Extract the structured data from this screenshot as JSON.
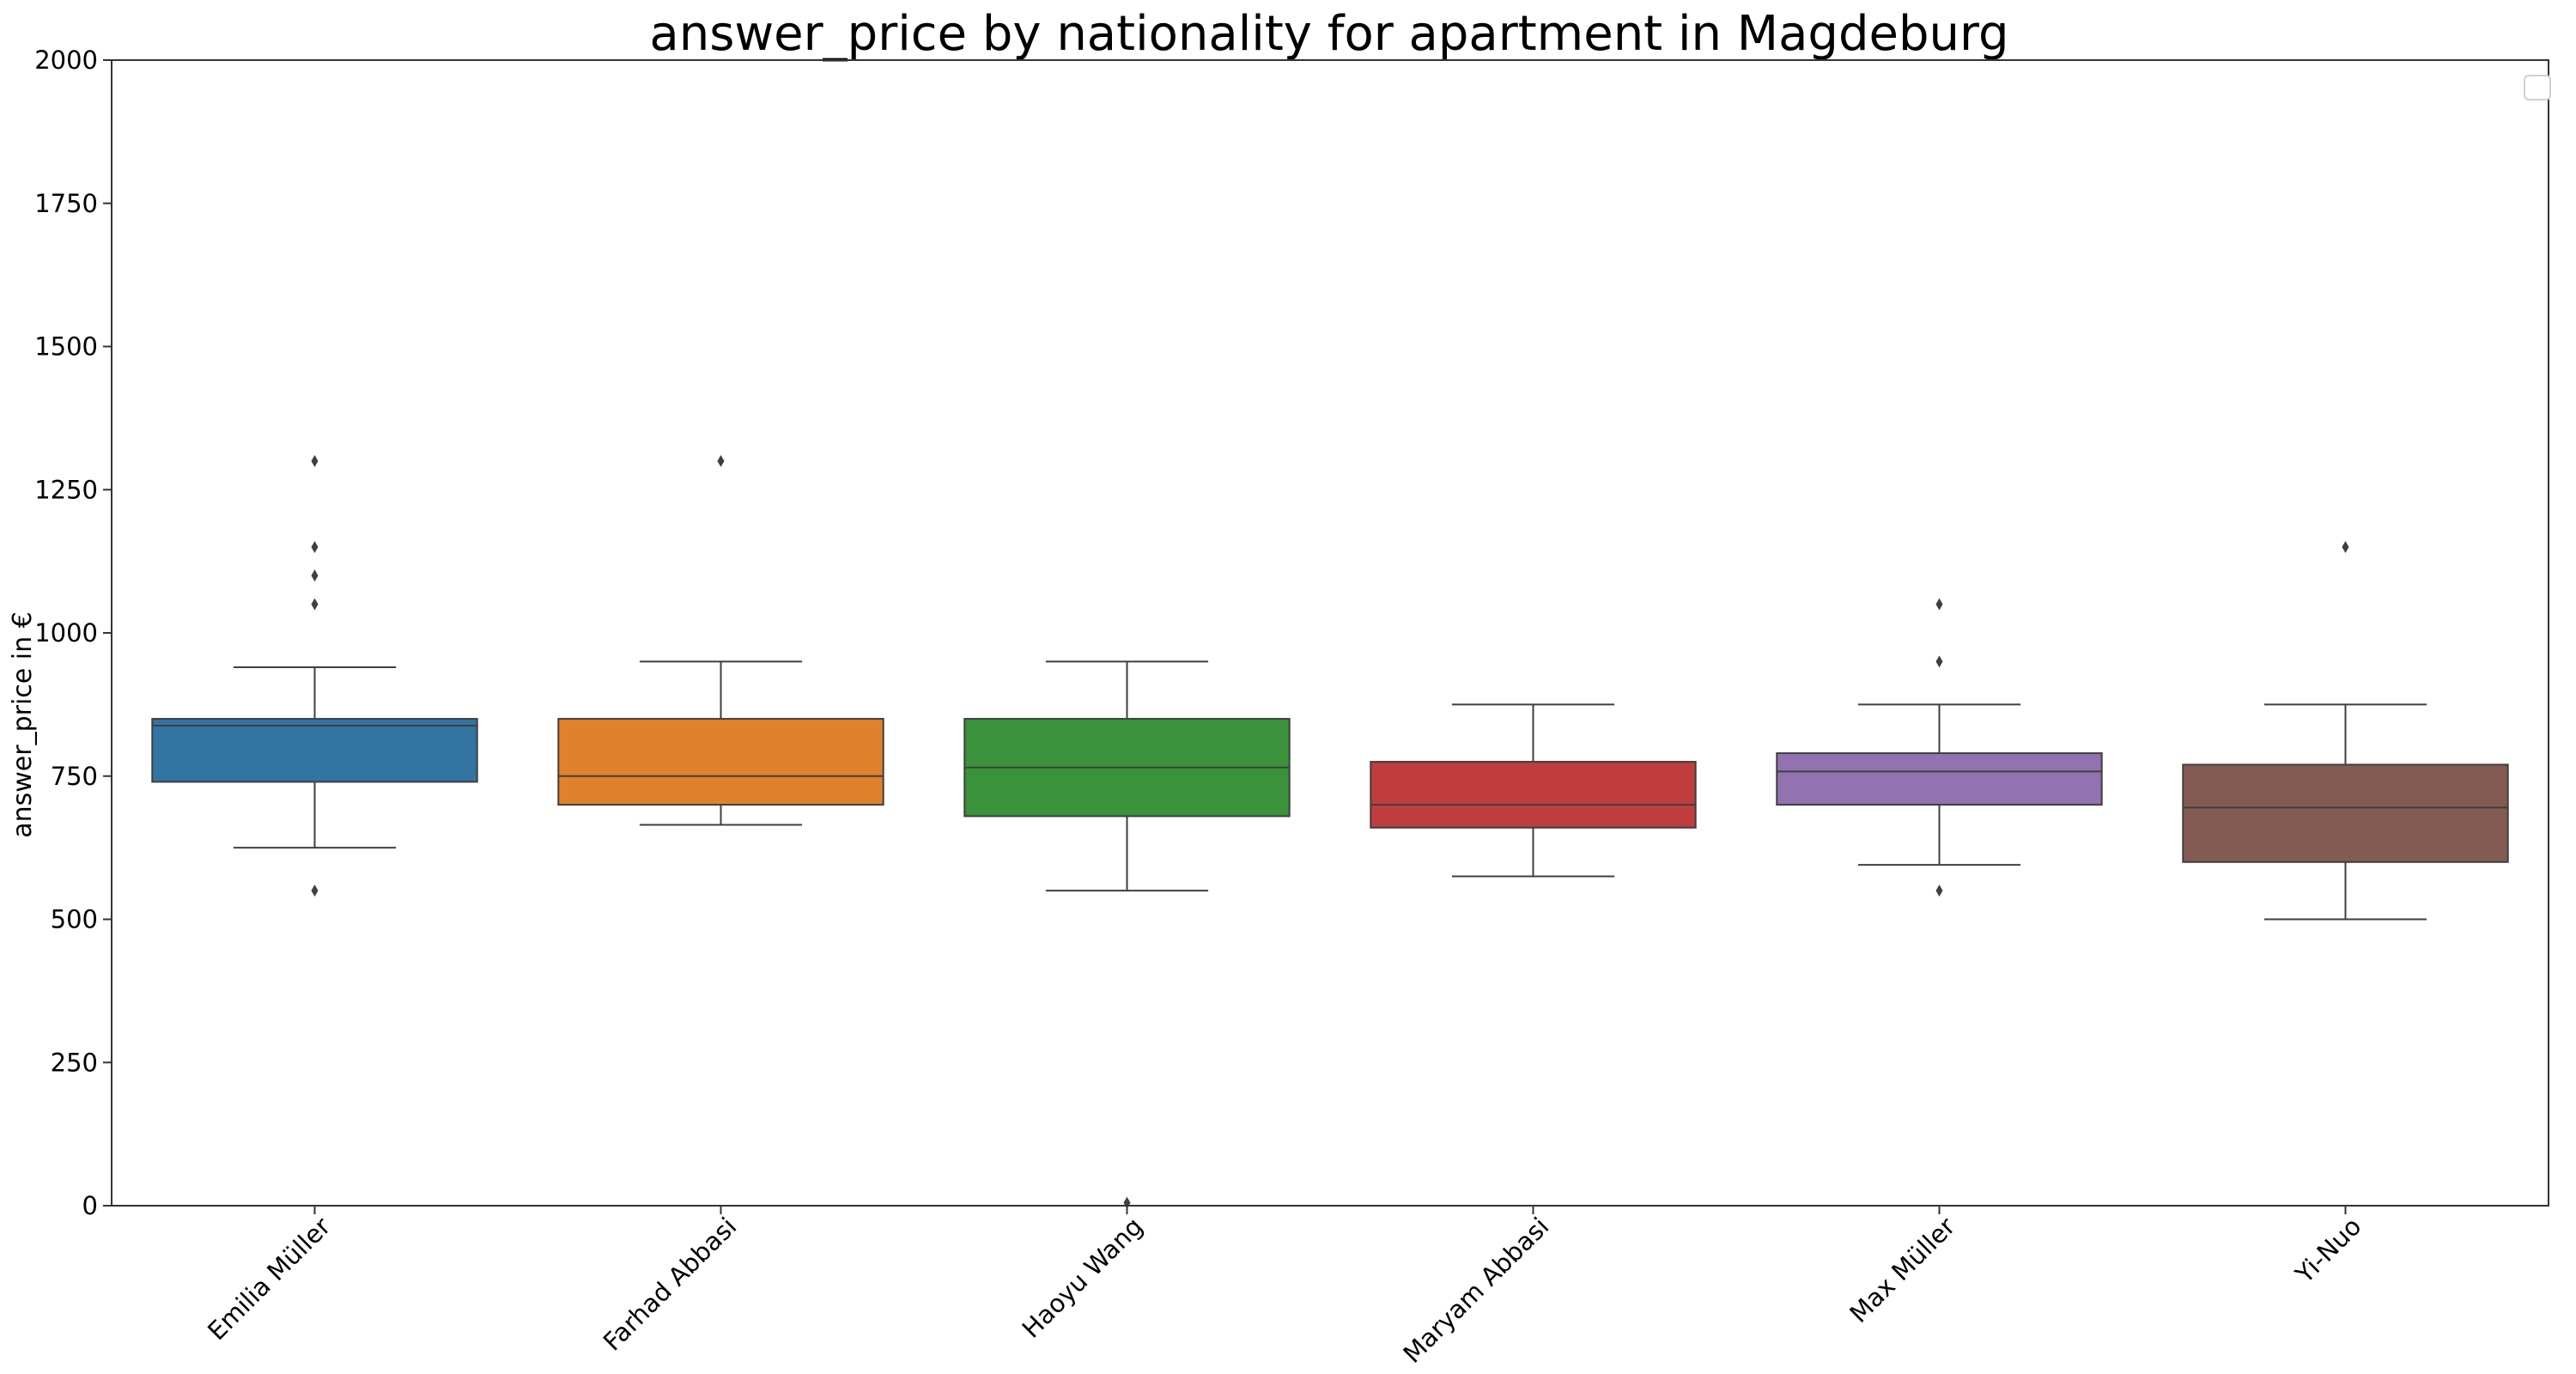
{
  "chart_data": {
    "type": "box",
    "title": "answer_price by nationality for apartment in Magdeburg",
    "xlabel": "",
    "ylabel": "answer_price in €",
    "ylim": [
      0,
      2000
    ],
    "yticks": [
      0,
      250,
      500,
      750,
      1000,
      1250,
      1500,
      1750,
      2000
    ],
    "grid": false,
    "legend": {
      "placement": "top-right",
      "entries": []
    },
    "categories": [
      "Emilia Müller",
      "Farhad Abbasi",
      "Haoyu Wang",
      "Maryam Abbasi",
      "Max Müller",
      "Yi-Nuo"
    ],
    "boxes": [
      {
        "category": "Emilia Müller",
        "color": "#3274a1",
        "whisker_low": 625,
        "q1": 740,
        "median": 838,
        "q3": 850,
        "whisker_high": 940,
        "outliers": [
          550,
          1050,
          1100,
          1150,
          1300
        ]
      },
      {
        "category": "Farhad Abbasi",
        "color": "#e1812c",
        "whisker_low": 665,
        "q1": 700,
        "median": 750,
        "q3": 850,
        "whisker_high": 950,
        "outliers": [
          1300
        ]
      },
      {
        "category": "Haoyu Wang",
        "color": "#3a923a",
        "whisker_low": 550,
        "q1": 680,
        "median": 765,
        "q3": 850,
        "whisker_high": 950,
        "outliers": [
          5
        ]
      },
      {
        "category": "Maryam Abbasi",
        "color": "#c03d3e",
        "whisker_low": 575,
        "q1": 660,
        "median": 700,
        "q3": 775,
        "whisker_high": 875,
        "outliers": []
      },
      {
        "category": "Max Müller",
        "color": "#9372b2",
        "whisker_low": 595,
        "q1": 700,
        "median": 758,
        "q3": 790,
        "whisker_high": 875,
        "outliers": [
          550,
          950,
          1050
        ]
      },
      {
        "category": "Yi-Nuo",
        "color": "#845b53",
        "whisker_low": 500,
        "q1": 600,
        "median": 695,
        "q3": 770,
        "whisker_high": 875,
        "outliers": [
          1150
        ]
      }
    ]
  }
}
